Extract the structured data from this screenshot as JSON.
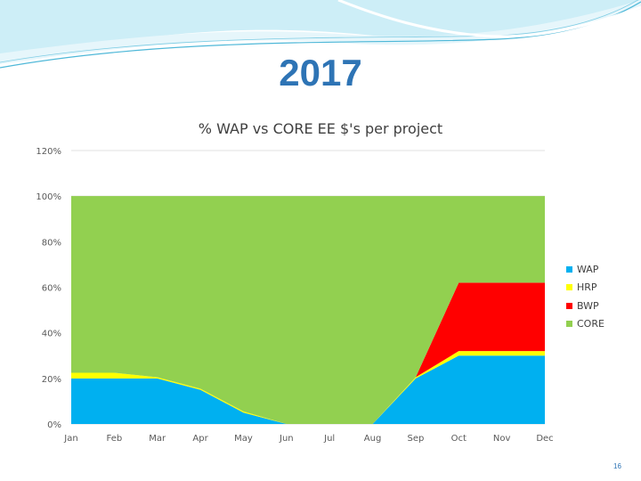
{
  "slide": {
    "title": "2017",
    "page_number": "16"
  },
  "colors": {
    "WAP": "#00b0f0",
    "HRP": "#ffff00",
    "BWP": "#ff0000",
    "CORE": "#92d050",
    "title": "#2e74b5",
    "header_band": "#cdeef7"
  },
  "chart_data": {
    "type": "area",
    "stacked": true,
    "title": "% WAP vs CORE EE $'s per project",
    "categories": [
      "Jan",
      "Feb",
      "Mar",
      "Apr",
      "May",
      "Jun",
      "Jul",
      "Aug",
      "Sep",
      "Oct",
      "Nov",
      "Dec"
    ],
    "y_ticks": [
      "0%",
      "20%",
      "40%",
      "60%",
      "80%",
      "100%",
      "120%"
    ],
    "ylim": [
      0,
      1.2
    ],
    "grid": true,
    "legend": "right",
    "series": [
      {
        "name": "WAP",
        "color": "#00b0f0",
        "values": [
          0.2,
          0.2,
          0.2,
          0.15,
          0.05,
          0.0,
          0.0,
          0.0,
          0.2,
          0.3,
          0.3,
          0.3
        ]
      },
      {
        "name": "HRP",
        "color": "#ffff00",
        "values": [
          0.025,
          0.025,
          0.005,
          0.005,
          0.005,
          0.0,
          0.0,
          0.0,
          0.005,
          0.02,
          0.02,
          0.02
        ]
      },
      {
        "name": "BWP",
        "color": "#ff0000",
        "values": [
          0.0,
          0.0,
          0.0,
          0.0,
          0.0,
          0.0,
          0.0,
          0.0,
          0.0,
          0.3,
          0.3,
          0.3
        ]
      },
      {
        "name": "CORE",
        "color": "#92d050",
        "values": [
          0.775,
          0.775,
          0.795,
          0.845,
          0.945,
          1.0,
          1.0,
          1.0,
          0.795,
          0.38,
          0.38,
          0.38
        ]
      }
    ]
  }
}
